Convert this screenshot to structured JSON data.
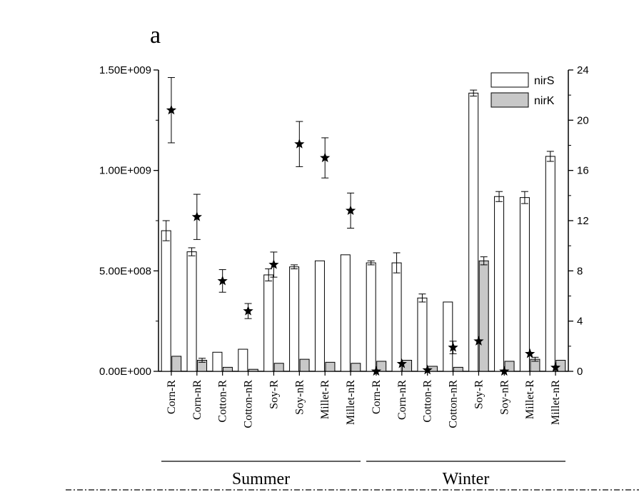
{
  "panel_label": "a",
  "chart_data": {
    "type": "bar",
    "categories": [
      "Corn-R",
      "Corn-nR",
      "Cotton-R",
      "Cotton-nR",
      "Soy-R",
      "Soy-nR",
      "Millet-R",
      "Millet-nR",
      "Corn-R",
      "Corn-nR",
      "Cotton-R",
      "Cotton-nR",
      "Soy-R",
      "Soy-nR",
      "Millet-R",
      "Millet-nR"
    ],
    "groups": [
      {
        "label": "Summer",
        "from": 0,
        "to": 7
      },
      {
        "label": "Winter",
        "from": 8,
        "to": 15
      }
    ],
    "series": [
      {
        "name": "nirS",
        "axis": "left",
        "color": "#ffffff",
        "values": [
          700000000.0,
          595000000.0,
          95000000.0,
          110000000.0,
          480000000.0,
          520000000.0,
          550000000.0,
          580000000.0,
          540000000.0,
          540000000.0,
          365000000.0,
          345000000.0,
          1385000000.0,
          870000000.0,
          865000000.0,
          1070000000.0
        ],
        "errors": [
          50000000.0,
          20000000.0,
          0,
          0,
          30000000.0,
          10000000.0,
          0,
          0,
          10000000.0,
          50000000.0,
          20000000.0,
          0,
          15000000.0,
          25000000.0,
          30000000.0,
          25000000.0
        ]
      },
      {
        "name": "nirK",
        "axis": "left",
        "color": "#c8c8c8",
        "values": [
          75000000.0,
          55000000.0,
          20000000.0,
          10000000.0,
          40000000.0,
          60000000.0,
          45000000.0,
          40000000.0,
          50000000.0,
          55000000.0,
          25000000.0,
          20000000.0,
          550000000.0,
          50000000.0,
          60000000.0,
          55000000.0
        ],
        "errors": [
          0,
          10000000.0,
          0,
          0,
          0,
          0,
          0,
          0,
          0,
          0,
          0,
          0,
          20000000.0,
          0,
          10000000.0,
          0
        ]
      },
      {
        "axis": "right",
        "marker": "star",
        "values": [
          20.8,
          12.3,
          7.2,
          4.8,
          8.5,
          18.1,
          17.0,
          12.8,
          0,
          0.6,
          0.1,
          1.9,
          2.4,
          0,
          1.4,
          0.3
        ],
        "errors": [
          2.6,
          1.8,
          0.9,
          0.6,
          1.0,
          1.8,
          1.6,
          1.4,
          0,
          0,
          0,
          0.5,
          0,
          0,
          0,
          0
        ]
      }
    ],
    "left_axis": {
      "ylim": [
        0,
        1500000000.0
      ],
      "ticks": [
        0,
        500000000.0,
        1000000000.0,
        1500000000.0
      ],
      "tick_labels": [
        "0.00E+000",
        "5.00E+008",
        "1.00E+009",
        "1.50E+009"
      ]
    },
    "right_axis": {
      "ylim": [
        0,
        24
      ],
      "ticks": [
        0,
        4,
        8,
        12,
        16,
        20,
        24
      ],
      "tick_labels": [
        "0",
        "4",
        "8",
        "12",
        "16",
        "20",
        "24"
      ]
    },
    "legend": {
      "position": "top-right",
      "entries": [
        "nirS",
        "nirK"
      ]
    }
  }
}
